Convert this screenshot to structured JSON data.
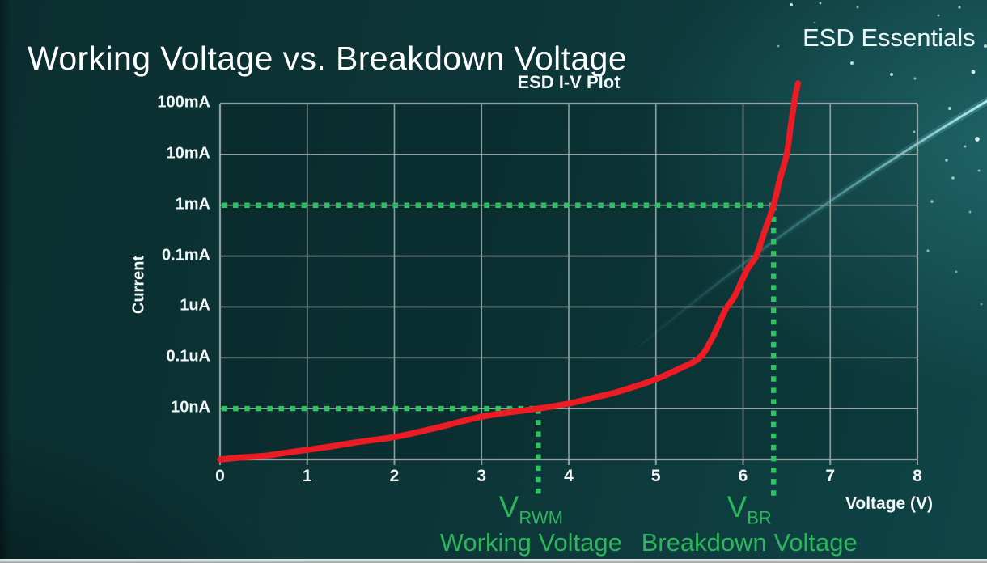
{
  "page": {
    "title": "Working Voltage vs. Breakdown Voltage",
    "brand": "ESD Essentials"
  },
  "chart_data": {
    "type": "line",
    "title": "ESD I-V Plot",
    "xlabel": "Voltage (V)",
    "ylabel": "Current",
    "xlim": [
      0,
      8
    ],
    "x_ticks": [
      "0",
      "1",
      "2",
      "3",
      "4",
      "5",
      "6",
      "7",
      "8"
    ],
    "y_tick_labels_top_to_bottom": [
      "100mA",
      "10mA",
      "1mA",
      "0.1mA",
      "1uA",
      "0.1uA",
      "10nA"
    ],
    "y_gridlines": 7,
    "y_scale_note": "logarithmic current axis, one labeled gridline per decade step shown",
    "grid": true,
    "series": [
      {
        "name": "ESD device I-V curve",
        "color": "#ed1b24",
        "points_voltage_vs_gridlevel": [
          [
            0,
            0
          ],
          [
            0.25,
            0.04
          ],
          [
            0.5,
            0.07
          ],
          [
            0.75,
            0.13
          ],
          [
            1,
            0.19
          ],
          [
            1.25,
            0.25
          ],
          [
            1.5,
            0.32
          ],
          [
            1.75,
            0.38
          ],
          [
            2,
            0.44
          ],
          [
            2.25,
            0.53
          ],
          [
            2.5,
            0.63
          ],
          [
            2.75,
            0.74
          ],
          [
            3,
            0.84
          ],
          [
            3.25,
            0.91
          ],
          [
            3.65,
            1
          ],
          [
            4,
            1.1
          ],
          [
            4.25,
            1.2
          ],
          [
            4.5,
            1.3
          ],
          [
            4.75,
            1.43
          ],
          [
            5,
            1.58
          ],
          [
            5.25,
            1.77
          ],
          [
            5.5,
            2
          ],
          [
            5.65,
            2.4
          ],
          [
            5.8,
            2.95
          ],
          [
            5.9,
            3.2
          ],
          [
            6,
            3.57
          ],
          [
            6.07,
            3.8
          ],
          [
            6.15,
            4
          ],
          [
            6.25,
            4.5
          ],
          [
            6.35,
            5
          ],
          [
            6.42,
            5.5
          ],
          [
            6.5,
            6
          ],
          [
            6.55,
            6.6
          ],
          [
            6.6,
            7.15
          ],
          [
            6.63,
            7.4
          ]
        ]
      }
    ],
    "annotations": {
      "line_color": "#31c163",
      "text_color": "#2db55c",
      "vrwm": {
        "symbol": "V",
        "subscript": "RWM",
        "caption": "Working Voltage",
        "voltage": 3.65,
        "grid_level": 1,
        "current_at_level": "10nA"
      },
      "vbr": {
        "symbol": "V",
        "subscript": "BR",
        "caption": "Breakdown Voltage",
        "voltage": 6.35,
        "grid_level": 5,
        "current_at_level": "1mA"
      }
    }
  }
}
